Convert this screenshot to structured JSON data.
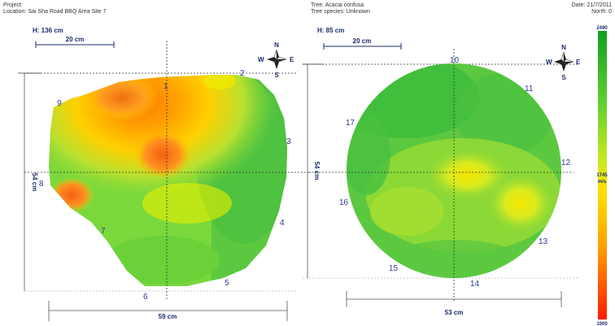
{
  "header": {
    "project": "Project:",
    "location": "Location: Sai Sha Road BBQ Area Site 7",
    "tree": "Tree: Acacia confusa",
    "species": "Tree species: Unknown",
    "date": "Date: 21/7/2011",
    "north": "North: 0"
  },
  "left_plot": {
    "height_label": "H: 136 cm",
    "scale_label": "20 cm",
    "width_label": "59 cm",
    "depth_label": "54 cm",
    "sensors": [
      "1",
      "2",
      "3",
      "4",
      "5",
      "6",
      "7",
      "8",
      "9"
    ]
  },
  "right_plot": {
    "height_label": "H: 85 cm",
    "scale_label": "20 cm",
    "width_label": "53 cm",
    "depth_label": "54 cm",
    "sensors": [
      "10",
      "11",
      "12",
      "13",
      "14",
      "15",
      "16",
      "17"
    ]
  },
  "compass": {
    "n": "N",
    "e": "E",
    "s": "S",
    "w": "W"
  },
  "legend": {
    "max": "2490",
    "mid": "1745",
    "unit": "m/s",
    "min": "1000",
    "colors": [
      "#ff1a00",
      "#ff7a00",
      "#ffd000",
      "#e8f000",
      "#90e030",
      "#3cc83c",
      "#10a020"
    ]
  }
}
